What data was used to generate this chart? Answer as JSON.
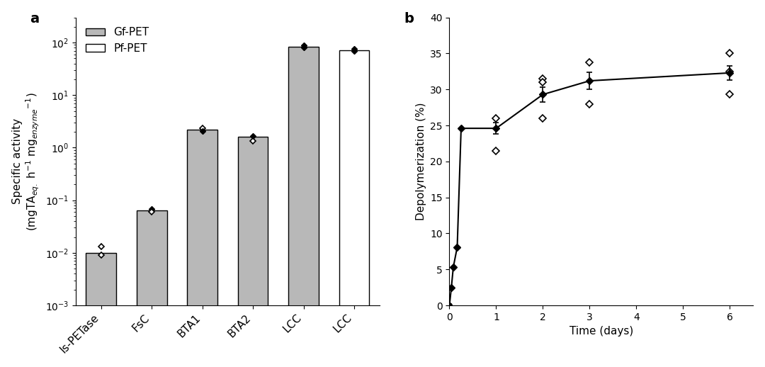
{
  "panel_a": {
    "categories": [
      "Is-PETase",
      "FsC",
      "BTA1",
      "BTA2",
      "LCC",
      "LCC"
    ],
    "bar_colors": [
      "#b8b8b8",
      "#b8b8b8",
      "#b8b8b8",
      "#b8b8b8",
      "#b8b8b8",
      "#ffffff"
    ],
    "bar_edgecolors": [
      "#000000",
      "#000000",
      "#000000",
      "#000000",
      "#000000",
      "#000000"
    ],
    "bar_heights": [
      0.01,
      0.065,
      2.2,
      1.6,
      82.0,
      72.0
    ],
    "indiv_points": [
      [
        0,
        0.013,
        false
      ],
      [
        0,
        0.009,
        false
      ],
      [
        1,
        0.068,
        true
      ],
      [
        1,
        0.06,
        false
      ],
      [
        2,
        2.35,
        false
      ],
      [
        2,
        2.05,
        true
      ],
      [
        3,
        1.65,
        true
      ],
      [
        3,
        1.35,
        false
      ],
      [
        4,
        88.0,
        true
      ],
      [
        4,
        80.0,
        true
      ],
      [
        5,
        76.0,
        true
      ],
      [
        5,
        68.0,
        true
      ]
    ],
    "ylim_log": [
      0.001,
      300
    ],
    "yticks": [
      0.001,
      0.01,
      0.1,
      1,
      10,
      100
    ],
    "ylabel_line1": "Specific activity",
    "ylabel_line2": "(mgTA$_{eq.}$ h$^{-1}$ mg$_{enzyme}$$^{-1}$)",
    "legend_gf": "Gf-PET",
    "legend_pf": "Pf-PET",
    "panel_label": "a"
  },
  "panel_b": {
    "time_filled": [
      0.0,
      0.042,
      0.083,
      0.167,
      0.25,
      1.0,
      2.0,
      3.0,
      6.0
    ],
    "depoly_filled": [
      0.0,
      2.5,
      5.3,
      8.1,
      24.6,
      24.6,
      29.3,
      31.2,
      32.3
    ],
    "yerr_filled": [
      0.0,
      0.0,
      0.0,
      0.0,
      0.0,
      0.8,
      1.0,
      1.2,
      1.0
    ],
    "marker_filled": [
      "o",
      "D",
      "D",
      "D",
      "D",
      "D",
      "D",
      "D",
      "D"
    ],
    "time_open": [
      1.0,
      1.0,
      2.0,
      2.0,
      2.0,
      3.0,
      3.0,
      6.0,
      6.0,
      6.0
    ],
    "depoly_open": [
      26.0,
      21.5,
      31.5,
      31.0,
      26.0,
      33.8,
      28.0,
      35.0,
      32.5,
      29.3
    ],
    "xlim": [
      0,
      6.5
    ],
    "ylim": [
      0,
      40
    ],
    "yticks": [
      0,
      5,
      10,
      15,
      20,
      25,
      30,
      35,
      40
    ],
    "xticks": [
      0,
      1,
      2,
      3,
      4,
      5,
      6
    ],
    "xlabel": "Time (days)",
    "ylabel": "Depolymerization (%)",
    "panel_label": "b"
  },
  "background_color": "#ffffff",
  "text_color": "#000000",
  "fig_width": 10.8,
  "fig_height": 5.18,
  "dpi": 100
}
